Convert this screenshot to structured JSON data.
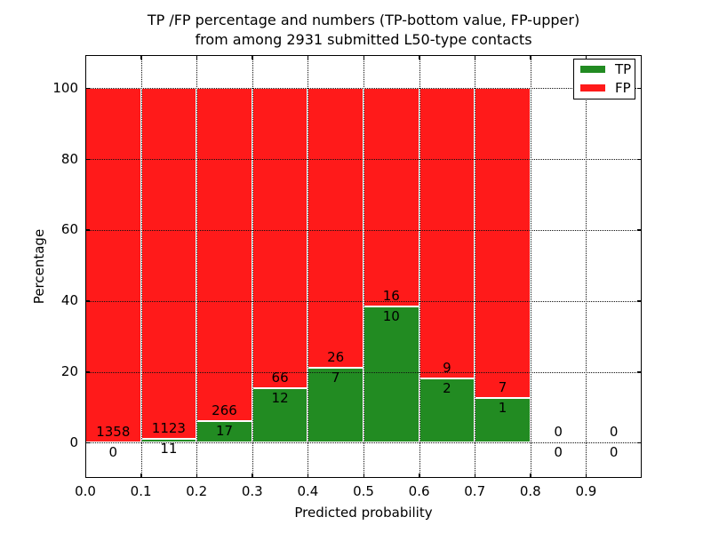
{
  "figure": {
    "title_line1": "TP /FP percentage and numbers (TP-bottom value, FP-upper)",
    "title_line2": "from among 2931 submitted L50-type contacts"
  },
  "chart_data": {
    "type": "bar",
    "stacked": true,
    "title": "TP /FP percentage and numbers (TP-bottom value, FP-upper) from among 2931 submitted L50-type contacts",
    "xlabel": "Predicted probability",
    "ylabel": "Percentage",
    "total_contacts": 2931,
    "xlim": [
      0.0,
      1.0
    ],
    "ylim": [
      -10,
      110
    ],
    "xticks": [
      0.0,
      0.1,
      0.2,
      0.3,
      0.4,
      0.5,
      0.6,
      0.7,
      0.8,
      0.9
    ],
    "yticks": [
      0,
      20,
      40,
      60,
      80,
      100
    ],
    "grid": true,
    "bar_bin_width": 0.1,
    "bar_edge_color": "#ffffff",
    "colors": {
      "tp": "#228b22",
      "fp": "#ff1a1a"
    },
    "legend": {
      "position": "upper right",
      "entries": [
        {
          "label": "TP",
          "color": "#228b22"
        },
        {
          "label": "FP",
          "color": "#ff1a1a"
        }
      ]
    },
    "bins": [
      {
        "x0": 0.0,
        "x1": 0.1,
        "tp": 0,
        "fp": 1358,
        "tp_percent": 0.0
      },
      {
        "x0": 0.1,
        "x1": 0.2,
        "tp": 11,
        "fp": 1123,
        "tp_percent": 0.97
      },
      {
        "x0": 0.2,
        "x1": 0.3,
        "tp": 17,
        "fp": 266,
        "tp_percent": 6.01
      },
      {
        "x0": 0.3,
        "x1": 0.4,
        "tp": 12,
        "fp": 66,
        "tp_percent": 15.38
      },
      {
        "x0": 0.4,
        "x1": 0.5,
        "tp": 7,
        "fp": 26,
        "tp_percent": 21.21
      },
      {
        "x0": 0.5,
        "x1": 0.6,
        "tp": 10,
        "fp": 16,
        "tp_percent": 38.46
      },
      {
        "x0": 0.6,
        "x1": 0.7,
        "tp": 2,
        "fp": 9,
        "tp_percent": 18.18
      },
      {
        "x0": 0.7,
        "x1": 0.8,
        "tp": 1,
        "fp": 7,
        "tp_percent": 12.5
      },
      {
        "x0": 0.8,
        "x1": 0.9,
        "tp": 0,
        "fp": 0,
        "tp_percent": 0.0
      },
      {
        "x0": 0.9,
        "x1": 1.0,
        "tp": 0,
        "fp": 0,
        "tp_percent": 0.0
      }
    ]
  }
}
